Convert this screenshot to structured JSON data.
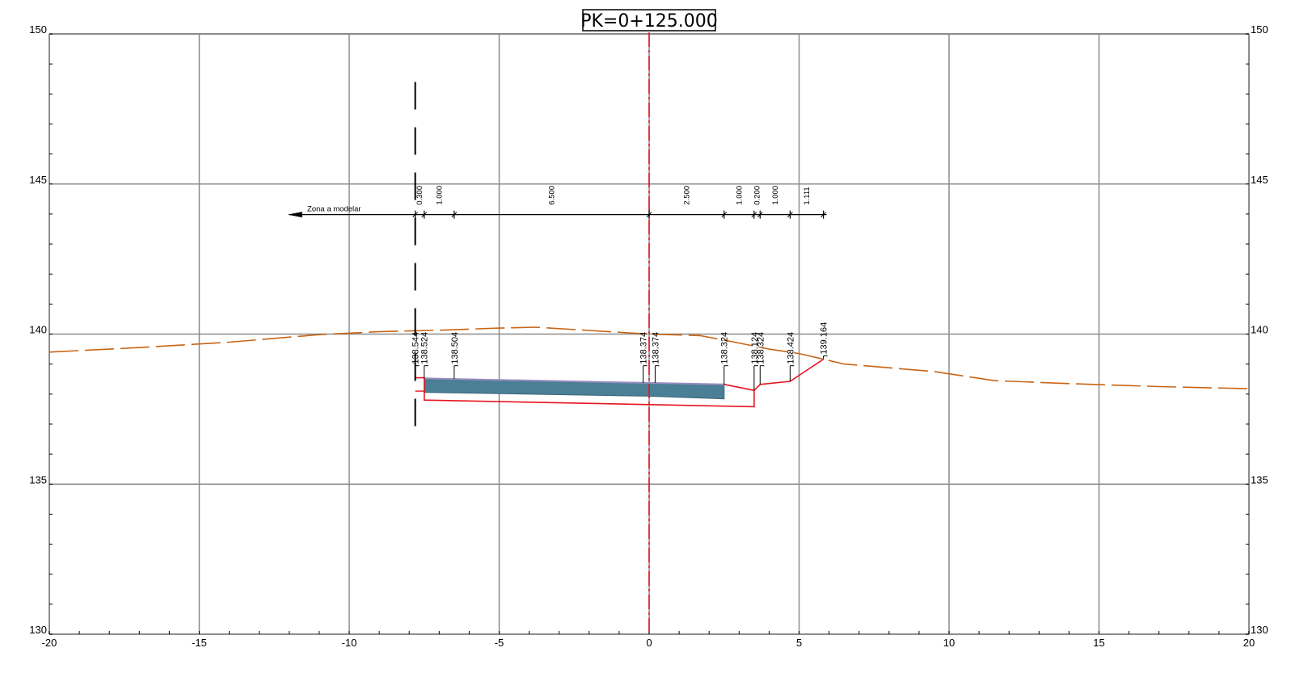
{
  "title": "PK=0+125.000",
  "axes": {
    "x": {
      "min": -20,
      "max": 20,
      "step": 5,
      "ticks": [
        "-20",
        "-15",
        "-10",
        "-5",
        "0",
        "5",
        "10",
        "15",
        "20"
      ]
    },
    "y": {
      "min": 130,
      "max": 150,
      "step": 5,
      "ticks": [
        "130",
        "135",
        "140",
        "145",
        "150"
      ]
    },
    "minor_step_x": 1,
    "minor_step_y": 1,
    "grid": true
  },
  "colors": {
    "terrain": "#c86414",
    "subgrade": "#e8141e",
    "centerline": "#e8141e",
    "pavement_fill": "#4a7f96",
    "pavement_top": "#9a8cc0",
    "grid": "#8c8c8c",
    "dimension": "#000000"
  },
  "zone_label": "Zona a modelar",
  "zone_arrow_x": [
    -12,
    -7.8
  ],
  "boundary_x": -7.8,
  "boundary_y_range": [
    136.5,
    148.4
  ],
  "dimension_y": 143.98,
  "dimension_ticks_x": [
    -7.8,
    -7.5,
    -6.5,
    0,
    2.5,
    3.5,
    3.7,
    4.7,
    5.811
  ],
  "dimensions": [
    {
      "x1": -7.8,
      "x2": -7.5,
      "label": "0.300"
    },
    {
      "x1": -7.5,
      "x2": -6.5,
      "label": "1.000"
    },
    {
      "x1": -6.5,
      "x2": 0,
      "label": "6.500"
    },
    {
      "x1": 0,
      "x2": 2.5,
      "label": "2.500"
    },
    {
      "x1": 2.5,
      "x2": 3.5,
      "label": "1.000"
    },
    {
      "x1": 3.5,
      "x2": 3.7,
      "label": "0.200"
    },
    {
      "x1": 3.7,
      "x2": 4.7,
      "label": "1.000"
    },
    {
      "x1": 4.7,
      "x2": 5.811,
      "label": "1.111"
    }
  ],
  "elevations": [
    {
      "x": -7.8,
      "y": 138.544,
      "label": "138.544"
    },
    {
      "x": -7.5,
      "y": 138.524,
      "label": "138.524"
    },
    {
      "x": -6.5,
      "y": 138.504,
      "label": "138.504"
    },
    {
      "x": -0.2,
      "y": 138.374,
      "label": "138.374"
    },
    {
      "x": 0.2,
      "y": 138.374,
      "label": "138.374"
    },
    {
      "x": 2.5,
      "y": 138.324,
      "label": "138.324"
    },
    {
      "x": 3.5,
      "y": 138.124,
      "label": "138.124"
    },
    {
      "x": 3.7,
      "y": 138.324,
      "label": "138.324"
    },
    {
      "x": 4.7,
      "y": 138.424,
      "label": "138.424"
    },
    {
      "x": 5.811,
      "y": 139.164,
      "label": "139.164"
    }
  ],
  "terrain_line": [
    [
      -20,
      139.4
    ],
    [
      -17,
      139.55
    ],
    [
      -14,
      139.73
    ],
    [
      -11,
      139.98
    ],
    [
      -9,
      140.08
    ],
    [
      -7,
      140.13
    ],
    [
      -5,
      140.2
    ],
    [
      -3.8,
      140.23
    ],
    [
      -2,
      140.12
    ],
    [
      0,
      140.0
    ],
    [
      1.7,
      139.95
    ],
    [
      3.0,
      139.7
    ],
    [
      4.0,
      139.5
    ],
    [
      5.0,
      139.35
    ],
    [
      6.5,
      139.0
    ],
    [
      9.5,
      138.75
    ],
    [
      11.5,
      138.45
    ],
    [
      14,
      138.35
    ],
    [
      17,
      138.25
    ],
    [
      20,
      138.18
    ]
  ],
  "subgrade_outline": [
    [
      -7.8,
      138.544
    ],
    [
      -7.5,
      138.544
    ],
    [
      -7.5,
      137.8
    ],
    [
      3.5,
      137.58
    ],
    [
      3.5,
      138.124
    ],
    [
      3.7,
      138.324
    ],
    [
      4.7,
      138.424
    ],
    [
      5.811,
      139.164
    ]
  ],
  "subgrade_top": [
    [
      2.5,
      138.324
    ],
    [
      3.5,
      138.124
    ]
  ],
  "subgrade_step": [
    [
      -7.8,
      138.1
    ],
    [
      -7.5,
      138.1
    ]
  ],
  "pavement_polygon": [
    [
      -7.5,
      138.524
    ],
    [
      -6.5,
      138.504
    ],
    [
      0,
      138.374
    ],
    [
      2.5,
      138.324
    ],
    [
      2.5,
      137.84
    ],
    [
      0,
      137.93
    ],
    [
      -7.5,
      138.06
    ]
  ]
}
